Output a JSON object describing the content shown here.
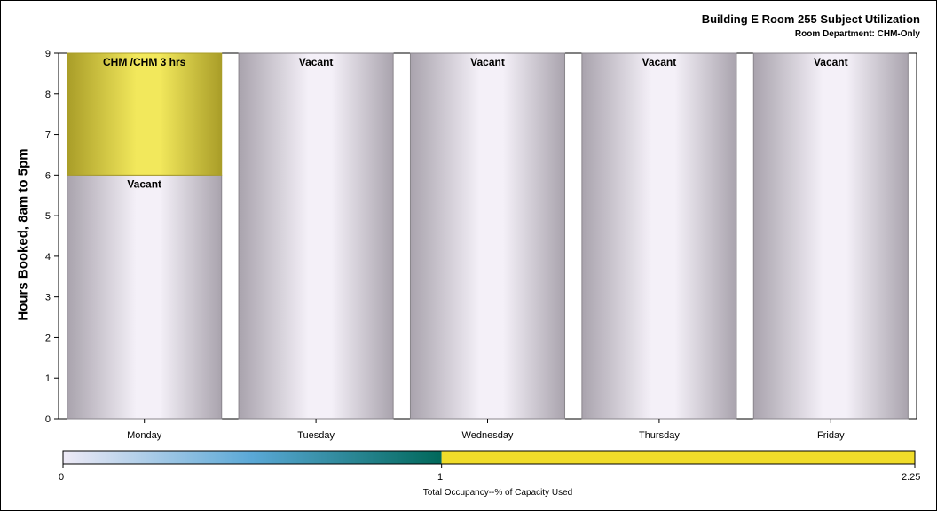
{
  "chart_data": {
    "type": "bar",
    "title": "Building E Room 255 Subject Utilization",
    "subtitle": "Room Department: CHM-Only",
    "ylabel": "Hours Booked, 8am to 5pm",
    "xlabel": "",
    "ylim": [
      0,
      9
    ],
    "yticks": [
      "0",
      "1",
      "2",
      "3",
      "4",
      "5",
      "6",
      "7",
      "8",
      "9"
    ],
    "categories": [
      "Monday",
      "Tuesday",
      "Wednesday",
      "Thursday",
      "Friday"
    ],
    "segments": [
      [
        {
          "label": "Vacant",
          "hours": 6,
          "occupancy": 0
        },
        {
          "label": "CHM /CHM 3 hrs",
          "hours": 3,
          "occupancy": 2.25
        }
      ],
      [
        {
          "label": "Vacant",
          "hours": 9,
          "occupancy": 0
        }
      ],
      [
        {
          "label": "Vacant",
          "hours": 9,
          "occupancy": 0
        }
      ],
      [
        {
          "label": "Vacant",
          "hours": 9,
          "occupancy": 0
        }
      ],
      [
        {
          "label": "Vacant",
          "hours": 9,
          "occupancy": 0
        }
      ]
    ],
    "colorbar": {
      "title": "Total Occupancy--% of Capacity Used",
      "min": 0,
      "mid": 1,
      "max": 2.25,
      "min_label": "0",
      "mid_label": "1",
      "max_label": "2.25",
      "colors": {
        "low": "#eeeaf6",
        "mid_low": "#5aa8d6",
        "mid": "#00685a",
        "high": "#f0dc2a"
      }
    },
    "colors": {
      "vacant": "#f4f0f8",
      "vacant_edge": "#a9a3ad",
      "booked": "#f2e85c",
      "booked_edge": "#a99d28"
    }
  }
}
